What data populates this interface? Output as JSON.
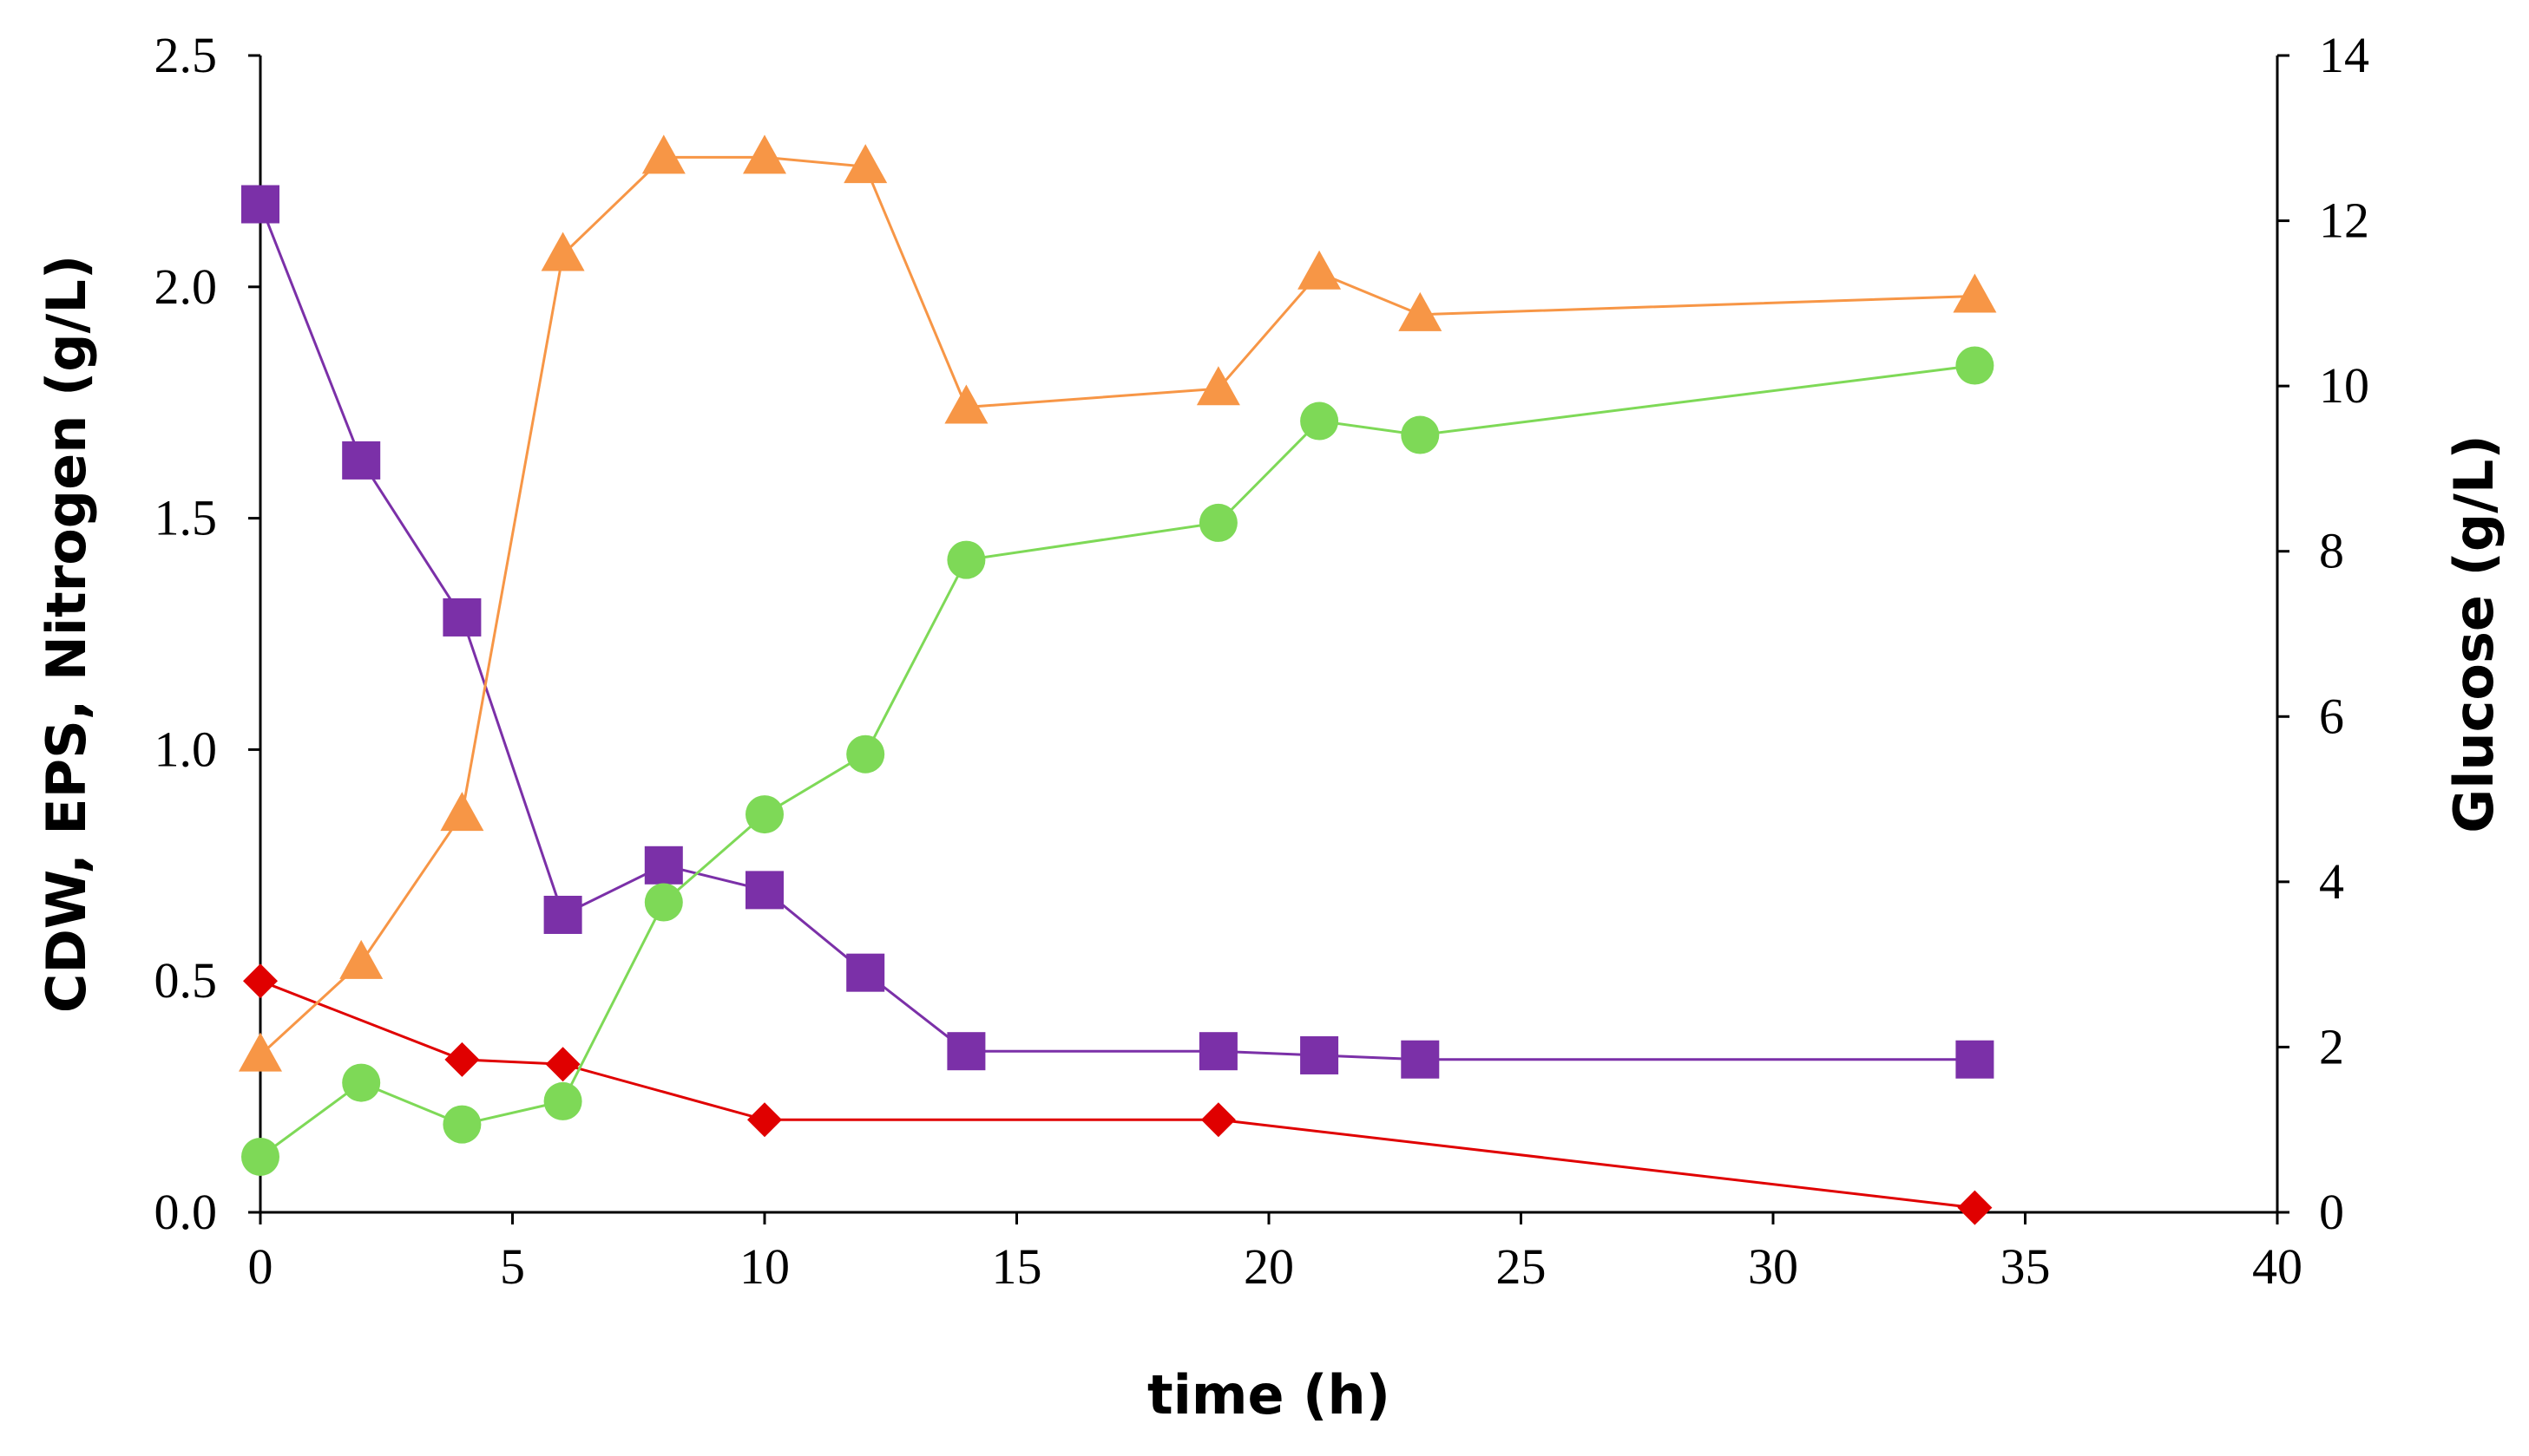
{
  "chart_data": {
    "type": "scatter",
    "title": "",
    "xlabel": "time (h)",
    "ylabel": "CDW, EPS, Nitrogen (g/L)",
    "y2label": "Glucose (g/L)",
    "xlim": [
      0,
      40
    ],
    "ylim": [
      0,
      2.5
    ],
    "y2lim": [
      0,
      14
    ],
    "x_ticks": [
      "0",
      "5",
      "10",
      "15",
      "20",
      "25",
      "30",
      "35",
      "40"
    ],
    "y_ticks": [
      "0.0",
      "0.5",
      "1.0",
      "1.5",
      "2.0",
      "2.5"
    ],
    "y2_ticks": [
      "0",
      "2",
      "4",
      "6",
      "8",
      "10",
      "12",
      "14"
    ],
    "grid": false,
    "series": [
      {
        "name": "CDW",
        "axis": "left",
        "marker": "triangle",
        "color": "#F79646",
        "x": [
          0,
          2,
          4,
          6,
          8,
          10,
          12,
          14,
          19,
          21,
          23,
          34
        ],
        "y": [
          0.34,
          0.54,
          0.86,
          2.07,
          2.28,
          2.28,
          2.26,
          1.74,
          1.78,
          2.03,
          1.94,
          1.98
        ]
      },
      {
        "name": "EPS",
        "axis": "left",
        "marker": "circle",
        "color": "#7ED957",
        "x": [
          0,
          2,
          4,
          6,
          8,
          10,
          12,
          14,
          19,
          21,
          23,
          34
        ],
        "y": [
          0.12,
          0.28,
          0.19,
          0.24,
          0.67,
          0.86,
          0.99,
          1.41,
          1.49,
          1.71,
          1.68,
          1.83
        ]
      },
      {
        "name": "Nitrogen",
        "axis": "left",
        "marker": "diamond",
        "color": "#E00000",
        "x": [
          0,
          4,
          6,
          10,
          19,
          34
        ],
        "y": [
          0.5,
          0.33,
          0.32,
          0.2,
          0.2,
          0.01
        ]
      },
      {
        "name": "Glucose",
        "axis": "right",
        "marker": "square",
        "color": "#7B30A8",
        "x": [
          0,
          2,
          4,
          6,
          8,
          10,
          12,
          14,
          19,
          21,
          23,
          34
        ],
        "y": [
          12.2,
          9.1,
          7.2,
          3.6,
          4.2,
          3.9,
          2.9,
          1.95,
          1.95,
          1.9,
          1.85,
          1.85
        ]
      }
    ]
  }
}
